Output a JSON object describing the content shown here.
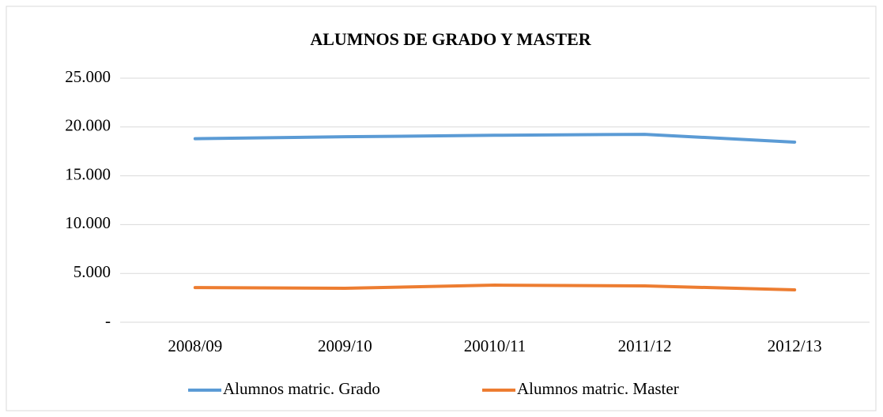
{
  "chart_data": {
    "type": "line",
    "title": "ALUMNOS DE GRADO Y MASTER",
    "categories": [
      "2008/09",
      "2009/10",
      "20010/11",
      "2011/12",
      "2012/13"
    ],
    "series": [
      {
        "name": "Alumnos matric. Grado",
        "color": "#5b9bd5",
        "values": [
          18800,
          19000,
          19150,
          19250,
          18450
        ]
      },
      {
        "name": "Alumnos matric. Master",
        "color": "#ed7d31",
        "values": [
          3550,
          3480,
          3800,
          3720,
          3320
        ]
      }
    ],
    "ylim": [
      0,
      25000
    ],
    "yticks": [
      {
        "value": 0,
        "label": "-"
      },
      {
        "value": 5000,
        "label": "5.000"
      },
      {
        "value": 10000,
        "label": "10.000"
      },
      {
        "value": 15000,
        "label": "15.000"
      },
      {
        "value": 20000,
        "label": "20.000"
      },
      {
        "value": 25000,
        "label": "25.000"
      }
    ],
    "grid": true,
    "legend": "bottom"
  }
}
